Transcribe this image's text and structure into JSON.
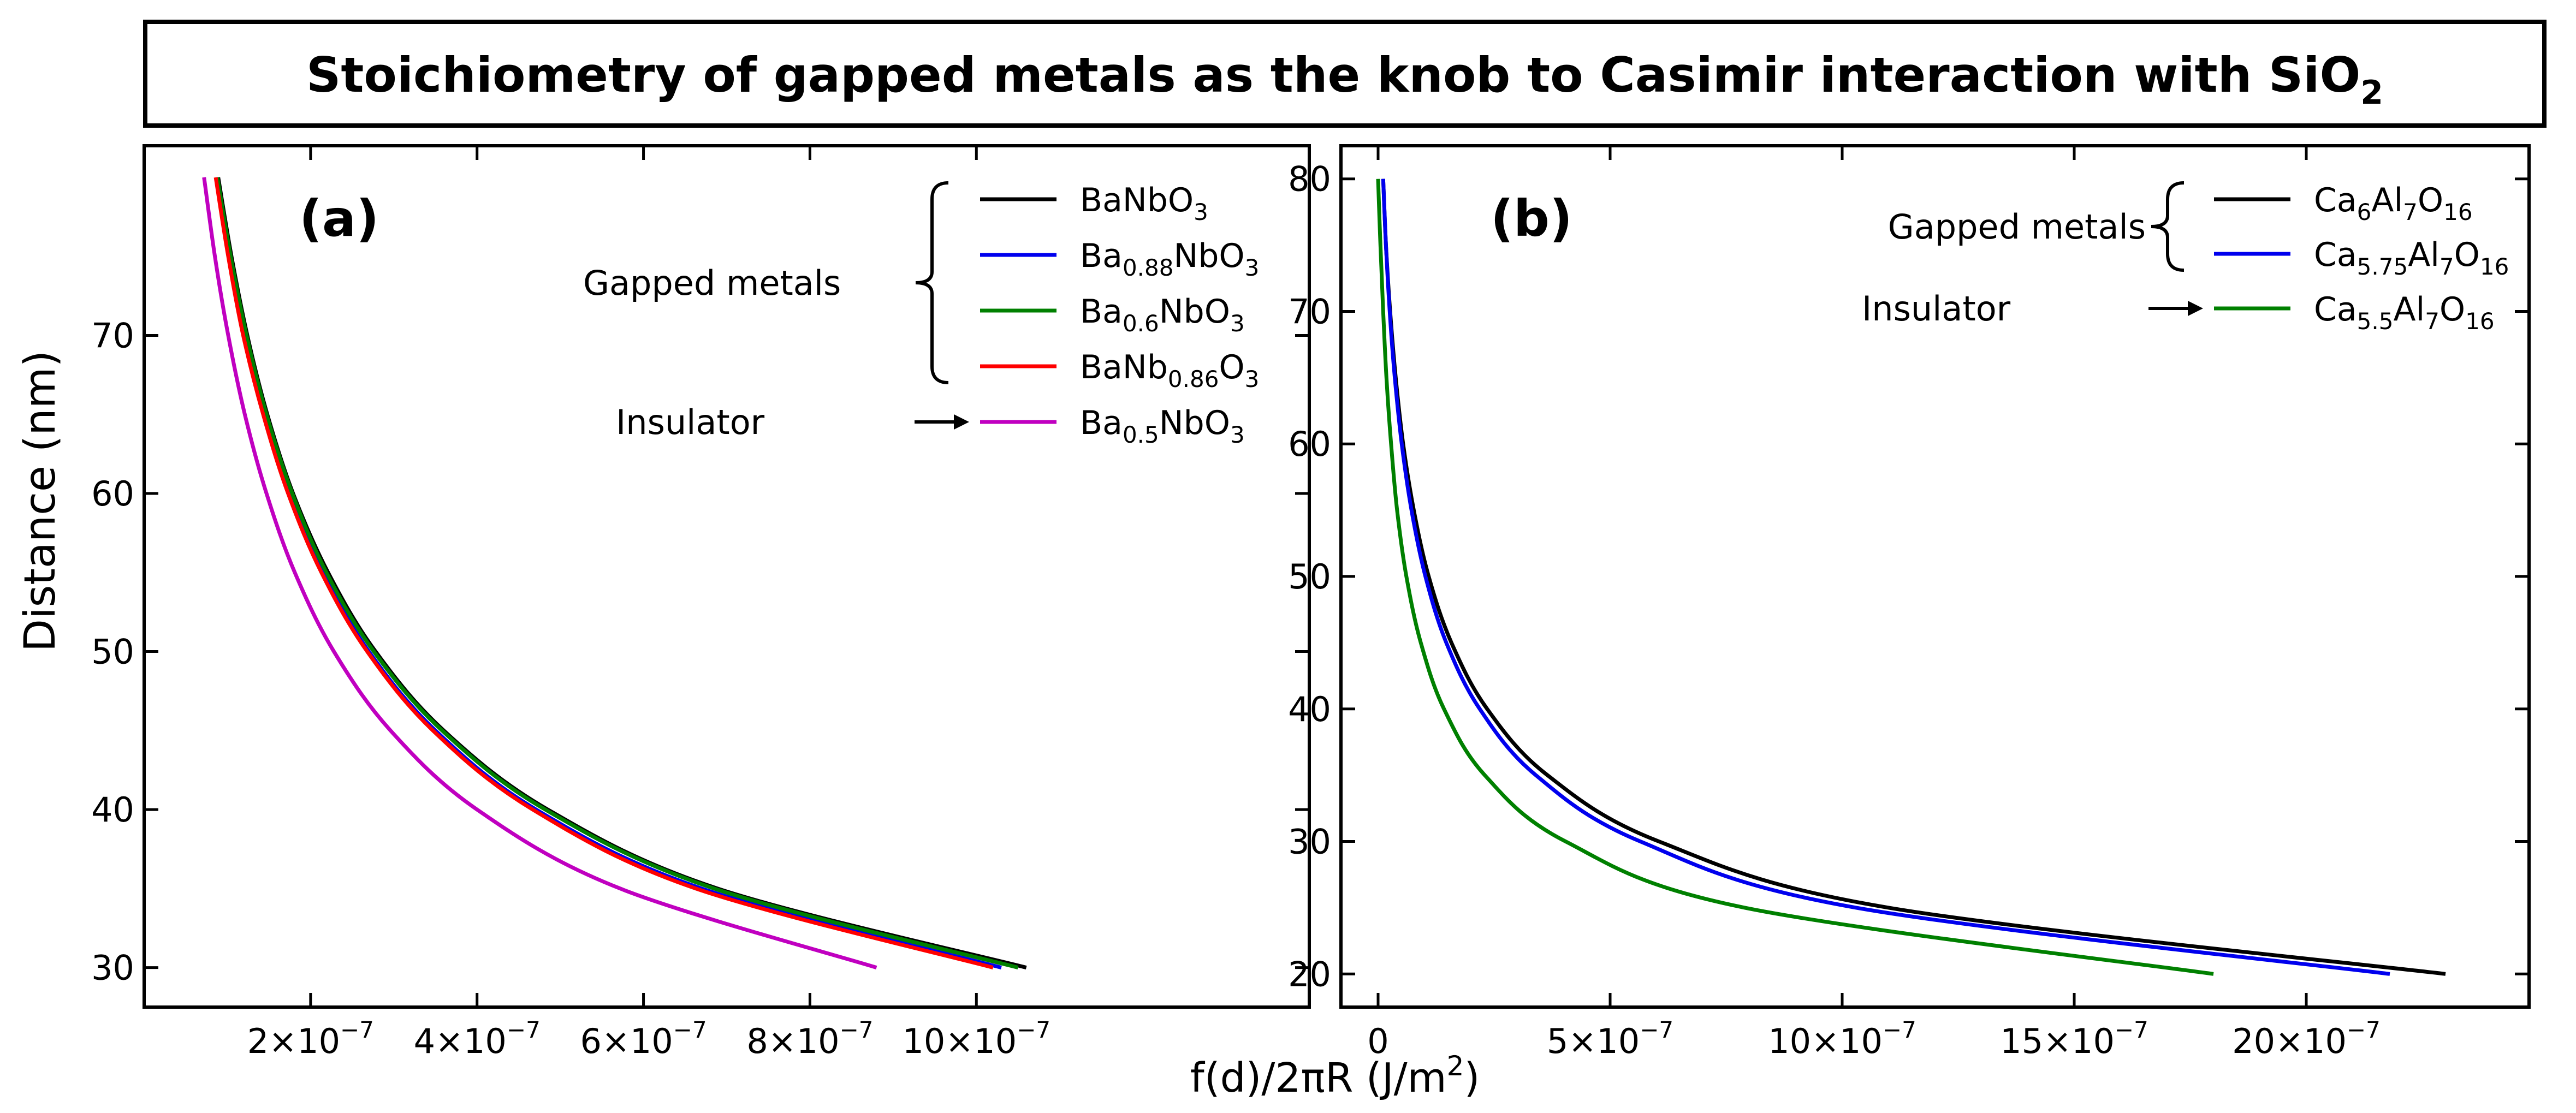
{
  "title": {
    "text": "Stoichiometry of gapped metals as the knob to Casimir interaction with SiO",
    "subscript": "2"
  },
  "xlabel": {
    "prefix": "f(d)/2πR (J/m",
    "superscript": "2",
    "suffix": ")"
  },
  "ylabel": "Distance (nm)",
  "chart_data": [
    {
      "type": "line",
      "panel": "(a)",
      "xlim": [
        0,
        1.4e-06
      ],
      "ylim": [
        27.5,
        82
      ],
      "xticks": [
        {
          "value": 2e-07,
          "mantissa": "2×10",
          "exp": "−7"
        },
        {
          "value": 4e-07,
          "mantissa": "4×10",
          "exp": "−7"
        },
        {
          "value": 6e-07,
          "mantissa": "6×10",
          "exp": "−7"
        },
        {
          "value": 8e-07,
          "mantissa": "8×10",
          "exp": "−7"
        },
        {
          "value": 1e-06,
          "mantissa": "10×10",
          "exp": "−7"
        }
      ],
      "yticks": [
        30,
        40,
        50,
        60,
        70
      ],
      "legend_groups": [
        {
          "label": "Gapped metals",
          "bracket": "curly"
        },
        {
          "label": "Insulator",
          "bracket": "arrow"
        }
      ],
      "series": [
        {
          "name": "BaNbO3",
          "label_parts": [
            [
              "BaNbO",
              ""
            ],
            [
              "3",
              "sub"
            ]
          ],
          "color": "#000000",
          "group": "Gapped metals",
          "x": [
            1.06e-06,
            6.89e-07,
            4.85e-07,
            3.6e-07,
            2.78e-07,
            2.21e-07,
            1.79e-07,
            1.48e-07,
            1.24e-07,
            1.05e-07,
            8.9e-08
          ],
          "y": [
            30,
            35,
            40,
            45,
            50,
            55,
            60,
            65,
            70,
            75,
            80
          ]
        },
        {
          "name": "Ba0.88NbO3",
          "label_parts": [
            [
              "Ba",
              ""
            ],
            [
              "0.88",
              "sub"
            ],
            [
              "NbO",
              ""
            ],
            [
              "3",
              "sub"
            ]
          ],
          "color": "#0000ee",
          "group": "Gapped metals",
          "x": [
            1.03e-06,
            6.7e-07,
            4.71e-07,
            3.5e-07,
            2.7e-07,
            2.15e-07,
            1.74e-07,
            1.44e-07,
            1.2e-07,
            1.02e-07,
            8.7e-08
          ],
          "y": [
            30,
            35,
            40,
            45,
            50,
            55,
            60,
            65,
            70,
            75,
            80
          ]
        },
        {
          "name": "Ba0.6NbO3",
          "label_parts": [
            [
              "Ba",
              ""
            ],
            [
              "0.6",
              "sub"
            ],
            [
              "NbO",
              ""
            ],
            [
              "3",
              "sub"
            ]
          ],
          "color": "#008000",
          "group": "Gapped metals",
          "x": [
            1.05e-06,
            6.85e-07,
            4.82e-07,
            3.58e-07,
            2.76e-07,
            2.19e-07,
            1.78e-07,
            1.47e-07,
            1.23e-07,
            1.04e-07,
            8.8e-08
          ],
          "y": [
            30,
            35,
            40,
            45,
            50,
            55,
            60,
            65,
            70,
            75,
            80
          ]
        },
        {
          "name": "BaNb0.86O3",
          "label_parts": [
            [
              "BaNb",
              ""
            ],
            [
              "0.86",
              "sub"
            ],
            [
              "O",
              ""
            ],
            [
              "3",
              "sub"
            ]
          ],
          "color": "#ff0000",
          "group": "Gapped metals",
          "x": [
            1.02e-06,
            6.63e-07,
            4.67e-07,
            3.47e-07,
            2.68e-07,
            2.13e-07,
            1.73e-07,
            1.43e-07,
            1.19e-07,
            1.01e-07,
            8.6e-08
          ],
          "y": [
            30,
            35,
            40,
            45,
            50,
            55,
            60,
            65,
            70,
            75,
            80
          ]
        },
        {
          "name": "Ba0.5NbO3",
          "label_parts": [
            [
              "Ba",
              ""
            ],
            [
              "0.5",
              "sub"
            ],
            [
              "NbO",
              ""
            ],
            [
              "3",
              "sub"
            ]
          ],
          "color": "#c000c0",
          "group": "Insulator",
          "x": [
            8.8e-07,
            5.72e-07,
            4e-07,
            2.96e-07,
            2.28e-07,
            1.81e-07,
            1.47e-07,
            1.21e-07,
            1.01e-07,
            8.5e-08,
            7.2e-08
          ],
          "y": [
            30,
            35,
            40,
            45,
            50,
            55,
            60,
            65,
            70,
            75,
            80
          ]
        }
      ]
    },
    {
      "type": "line",
      "panel": "(b)",
      "xlim": [
        -8e-08,
        2.48e-06
      ],
      "ylim": [
        17.5,
        82.5
      ],
      "xticks": [
        {
          "value": 0,
          "mantissa": "0",
          "exp": ""
        },
        {
          "value": 5e-07,
          "mantissa": "5×10",
          "exp": "−7"
        },
        {
          "value": 1e-06,
          "mantissa": "10×10",
          "exp": "−7"
        },
        {
          "value": 1.5e-06,
          "mantissa": "15×10",
          "exp": "−7"
        },
        {
          "value": 2e-06,
          "mantissa": "20×10",
          "exp": "−7"
        }
      ],
      "yticks": [
        20,
        30,
        40,
        50,
        60,
        70,
        80
      ],
      "legend_groups": [
        {
          "label": "Gapped metals",
          "bracket": "curly"
        },
        {
          "label": "Insulator",
          "bracket": "arrow"
        }
      ],
      "series": [
        {
          "name": "Ca6Al7O16",
          "label_parts": [
            [
              "Ca",
              ""
            ],
            [
              "6",
              "sub"
            ],
            [
              "Al",
              ""
            ],
            [
              "7",
              "sub"
            ],
            [
              "O",
              ""
            ],
            [
              "16",
              "sub"
            ]
          ],
          "color": "#000000",
          "group": "Gapped metals",
          "x": [
            2.3e-06,
            1.1e-06,
            6.05e-07,
            3.65e-07,
            2.35e-07,
            1.58e-07,
            1.09e-07,
            7.7e-08,
            5.4e-08,
            3.8e-08,
            2.6e-08,
            1.7e-08,
            1.1e-08
          ],
          "y": [
            20,
            25,
            30,
            35,
            40,
            45,
            50,
            55,
            60,
            65,
            70,
            75,
            80
          ]
        },
        {
          "name": "Ca5.75Al7O16",
          "label_parts": [
            [
              "Ca",
              ""
            ],
            [
              "5.75",
              "sub"
            ],
            [
              "Al",
              ""
            ],
            [
              "7",
              "sub"
            ],
            [
              "O",
              ""
            ],
            [
              "16",
              "sub"
            ]
          ],
          "color": "#0000ee",
          "group": "Gapped metals",
          "x": [
            2.18e-06,
            1.03e-06,
            5.65e-07,
            3.4e-07,
            2.19e-07,
            1.47e-07,
            1.02e-07,
            7.2e-08,
            5.1e-08,
            3.6e-08,
            2.5e-08,
            1.7e-08,
            1.1e-08
          ],
          "y": [
            20,
            25,
            30,
            35,
            40,
            45,
            50,
            55,
            60,
            65,
            70,
            75,
            80
          ]
        },
        {
          "name": "Ca5.5Al7O16",
          "label_parts": [
            [
              "Ca",
              ""
            ],
            [
              "5.5",
              "sub"
            ],
            [
              "Al",
              ""
            ],
            [
              "7",
              "sub"
            ],
            [
              "O",
              ""
            ],
            [
              "16",
              "sub"
            ]
          ],
          "color": "#008000",
          "group": "Insulator",
          "x": [
            1.8e-06,
            7.9e-07,
            4.04e-07,
            2.3e-07,
            1.42e-07,
            9.2e-08,
            6.1e-08,
            4.1e-08,
            2.8e-08,
            1.8e-08,
            1.1e-08,
            5e-09,
            0
          ],
          "y": [
            20,
            25,
            30,
            35,
            40,
            45,
            50,
            55,
            60,
            65,
            70,
            75,
            80
          ]
        }
      ]
    }
  ]
}
